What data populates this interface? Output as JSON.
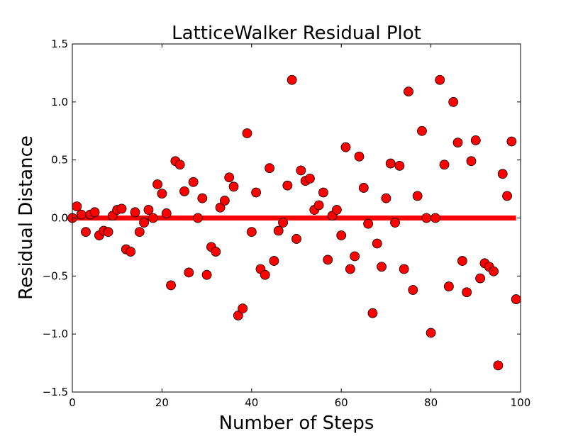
{
  "chart_data": {
    "type": "scatter",
    "title": "LatticeWalker Residual Plot",
    "xlabel": "Number of Steps",
    "ylabel": "Residual Distance",
    "xlim": [
      0,
      100
    ],
    "ylim": [
      -1.5,
      1.5
    ],
    "xticks": [
      0,
      20,
      40,
      60,
      80,
      100
    ],
    "yticks": [
      -1.5,
      -1.0,
      -0.5,
      0.0,
      0.5,
      1.0,
      1.5
    ],
    "xtick_labels": [
      "0",
      "20",
      "40",
      "60",
      "80",
      "100"
    ],
    "ytick_labels": [
      "−1.5",
      "−1.0",
      "−0.5",
      "0.0",
      "0.5",
      "1.0",
      "1.5"
    ],
    "grid": false,
    "reference_line": {
      "y": 0.0,
      "x_range": [
        0,
        99
      ],
      "color": "#ff0000"
    },
    "marker_color": "#ff0000",
    "marker_edge_color": "#000000",
    "x": [
      0,
      1,
      2,
      3,
      4,
      5,
      6,
      7,
      8,
      9,
      10,
      11,
      12,
      13,
      14,
      15,
      16,
      17,
      18,
      19,
      20,
      21,
      22,
      23,
      24,
      25,
      26,
      27,
      28,
      29,
      30,
      31,
      32,
      33,
      34,
      35,
      36,
      37,
      38,
      39,
      40,
      41,
      42,
      43,
      44,
      45,
      46,
      47,
      48,
      49,
      50,
      51,
      52,
      53,
      54,
      55,
      56,
      57,
      58,
      59,
      60,
      61,
      62,
      63,
      64,
      65,
      66,
      67,
      68,
      69,
      70,
      71,
      72,
      73,
      74,
      75,
      76,
      77,
      78,
      79,
      80,
      81,
      82,
      83,
      84,
      85,
      86,
      87,
      88,
      89,
      90,
      91,
      92,
      93,
      94,
      95,
      96,
      97,
      98,
      99
    ],
    "y": [
      0.0,
      0.1,
      0.03,
      -0.12,
      0.03,
      0.05,
      -0.15,
      -0.11,
      -0.12,
      0.02,
      0.07,
      0.08,
      -0.27,
      -0.29,
      0.05,
      -0.12,
      -0.04,
      0.07,
      0.0,
      0.29,
      0.21,
      0.04,
      -0.58,
      0.49,
      0.46,
      0.23,
      -0.47,
      0.31,
      0.0,
      0.17,
      -0.49,
      -0.25,
      -0.29,
      0.09,
      0.15,
      0.35,
      0.27,
      -0.84,
      -0.78,
      0.73,
      -0.12,
      0.22,
      -0.44,
      -0.49,
      0.43,
      -0.37,
      -0.11,
      -0.04,
      0.28,
      1.19,
      -0.18,
      0.41,
      0.32,
      0.34,
      0.07,
      0.11,
      0.22,
      -0.36,
      0.02,
      0.07,
      -0.15,
      0.61,
      -0.44,
      -0.33,
      0.53,
      0.26,
      -0.05,
      -0.82,
      -0.22,
      -0.42,
      0.17,
      0.47,
      -0.04,
      0.45,
      -0.44,
      1.09,
      -0.62,
      0.19,
      0.75,
      0.0,
      -0.99,
      0.0,
      1.19,
      0.46,
      -0.59,
      1.0,
      0.65,
      -0.37,
      -0.64,
      0.49,
      0.67,
      -0.52,
      -0.39,
      -0.42,
      -0.46,
      -1.27,
      0.38,
      0.19,
      0.66,
      -0.7
    ]
  }
}
